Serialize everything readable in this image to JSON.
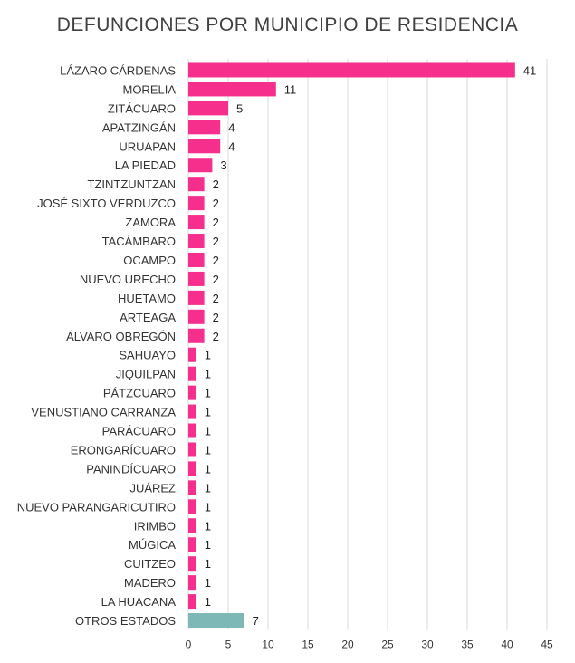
{
  "chart_data": {
    "type": "bar",
    "orientation": "horizontal",
    "title": "DEFUNCIONES POR MUNICIPIO DE RESIDENCIA",
    "xlabel": "",
    "ylabel": "",
    "xlim": [
      0,
      45
    ],
    "xticks": [
      0,
      5,
      10,
      15,
      20,
      25,
      30,
      35,
      40,
      45
    ],
    "grid": "vertical",
    "legend": "none",
    "categories": [
      "LÁZARO CÁRDENAS",
      "MORELIA",
      "ZITÁCUARO",
      "APATZINGÁN",
      "URUAPAN",
      "LA PIEDAD",
      "TZINTZUNTZAN",
      "JOSÉ SIXTO VERDUZCO",
      "ZAMORA",
      "TACÁMBARO",
      "OCAMPO",
      "NUEVO URECHO",
      "HUETAMO",
      "ARTEAGA",
      "ÁLVARO OBREGÓN",
      "SAHUAYO",
      "JIQUILPAN",
      "PÁTZCUARO",
      "VENUSTIANO CARRANZA",
      "PARÁCUARO",
      "ERONGARÍCUARO",
      "PANINDÍCUARO",
      "JUÁREZ",
      "NUEVO PARANGARICUTIRO",
      "IRIMBO",
      "MÚGICA",
      "CUITZEO",
      "MADERO",
      "LA HUACANA",
      "OTROS ESTADOS"
    ],
    "values": [
      41,
      11,
      5,
      4,
      4,
      3,
      2,
      2,
      2,
      2,
      2,
      2,
      2,
      2,
      2,
      1,
      1,
      1,
      1,
      1,
      1,
      1,
      1,
      1,
      1,
      1,
      1,
      1,
      1,
      7
    ],
    "colors": {
      "municipio": "#f72f8c",
      "otros": "#7eb8b6"
    }
  }
}
